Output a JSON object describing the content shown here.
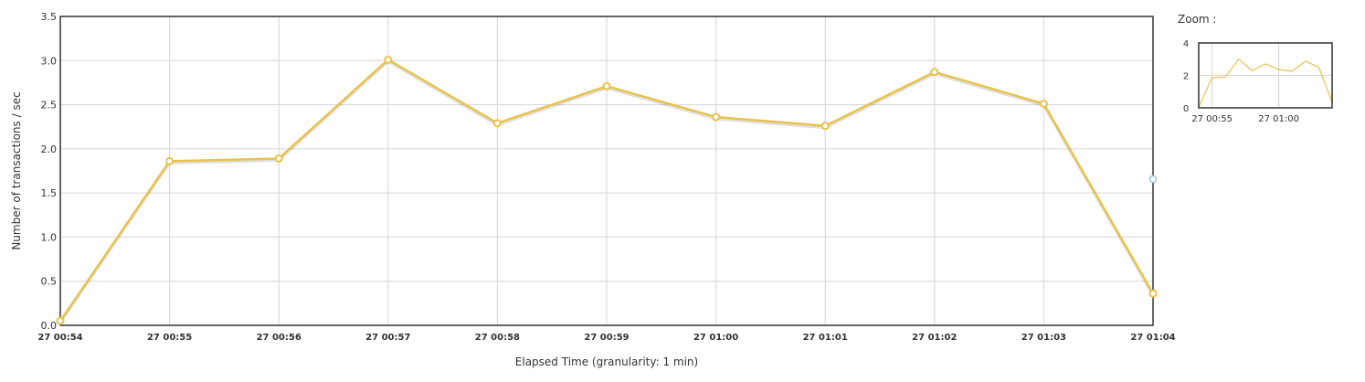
{
  "chart_data": [
    {
      "type": "line",
      "xlabel": "Elapsed Time (granularity: 1 min)",
      "ylabel": "Number of transactions / sec",
      "ylim": [
        0,
        3.5
      ],
      "yticks": [
        "0.0",
        "0.5",
        "1.0",
        "1.5",
        "2.0",
        "2.5",
        "3.0",
        "3.5"
      ],
      "x": [
        "27 00:54",
        "27 00:55",
        "27 00:56",
        "27 00:57",
        "27 00:58",
        "27 00:59",
        "27 01:00",
        "27 01:01",
        "27 01:02",
        "27 01:03",
        "27 01:04"
      ],
      "series": [
        {
          "values": [
            0.05,
            1.86,
            1.89,
            3.01,
            2.29,
            2.71,
            2.36,
            2.26,
            2.87,
            2.51,
            0.36
          ],
          "color": "#e8c24a"
        }
      ],
      "grid": true,
      "legend": "none"
    },
    {
      "type": "line",
      "title": "Zoom :",
      "ylim": [
        0,
        4
      ],
      "yticks": [
        "0",
        "2",
        "4"
      ],
      "xticks": [
        "27 00:55",
        "27 01:00"
      ],
      "grid": true,
      "series": [
        {
          "values": [
            0.05,
            1.86,
            1.89,
            3.01,
            2.29,
            2.71,
            2.36,
            2.26,
            2.87,
            2.51,
            0.36
          ],
          "color": "#e8c24a"
        }
      ]
    }
  ]
}
